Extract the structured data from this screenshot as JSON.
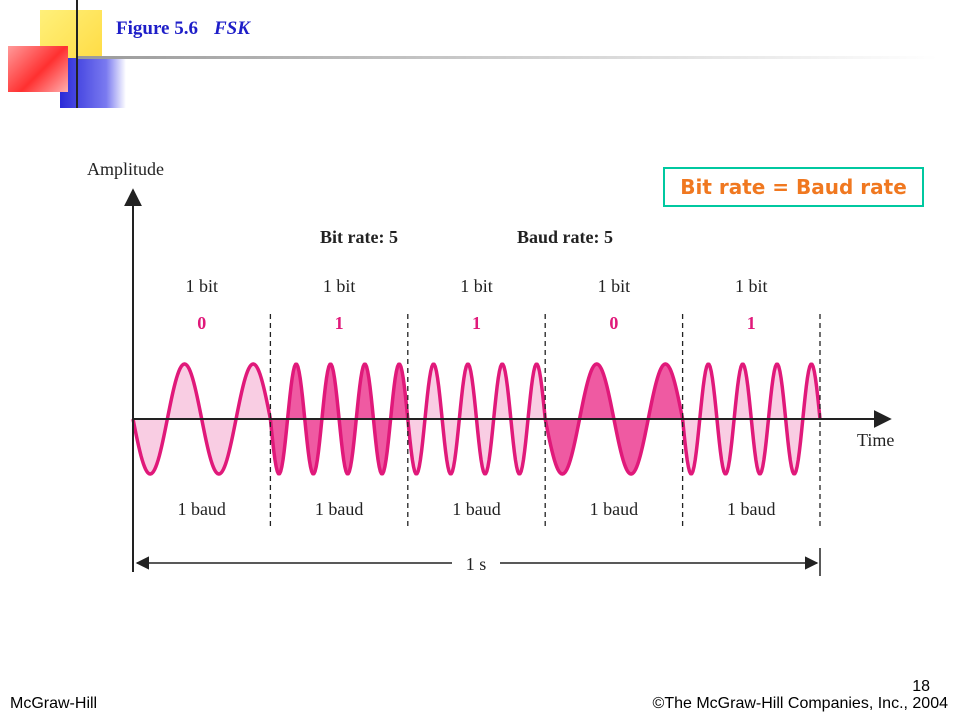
{
  "header": {
    "figure_label": "Figure 5.6",
    "figure_title": "FSK"
  },
  "callout": {
    "text": "Bit rate = Baud rate"
  },
  "diagram": {
    "y_axis_label": "Amplitude",
    "x_axis_label": "Time",
    "bit_rate_label": "Bit rate: 5",
    "baud_rate_label": "Baud rate: 5",
    "duration_label": "1 s",
    "segments": [
      {
        "bit_label": "1 bit",
        "bit_value": "0",
        "baud_label": "1 baud"
      },
      {
        "bit_label": "1 bit",
        "bit_value": "1",
        "baud_label": "1 baud"
      },
      {
        "bit_label": "1 bit",
        "bit_value": "1",
        "baud_label": "1 baud"
      },
      {
        "bit_label": "1 bit",
        "bit_value": "0",
        "baud_label": "1 baud"
      },
      {
        "bit_label": "1 bit",
        "bit_value": "1",
        "baud_label": "1 baud"
      }
    ],
    "colors": {
      "wave": "#e0197a",
      "fill_light": "#f9cde3",
      "fill_dark": "#ef5aa2",
      "bit_value": "#e0197a"
    }
  },
  "footer": {
    "left": "McGraw-Hill",
    "right": "©The McGraw-Hill Companies, Inc., 2004",
    "page_number": "18"
  }
}
